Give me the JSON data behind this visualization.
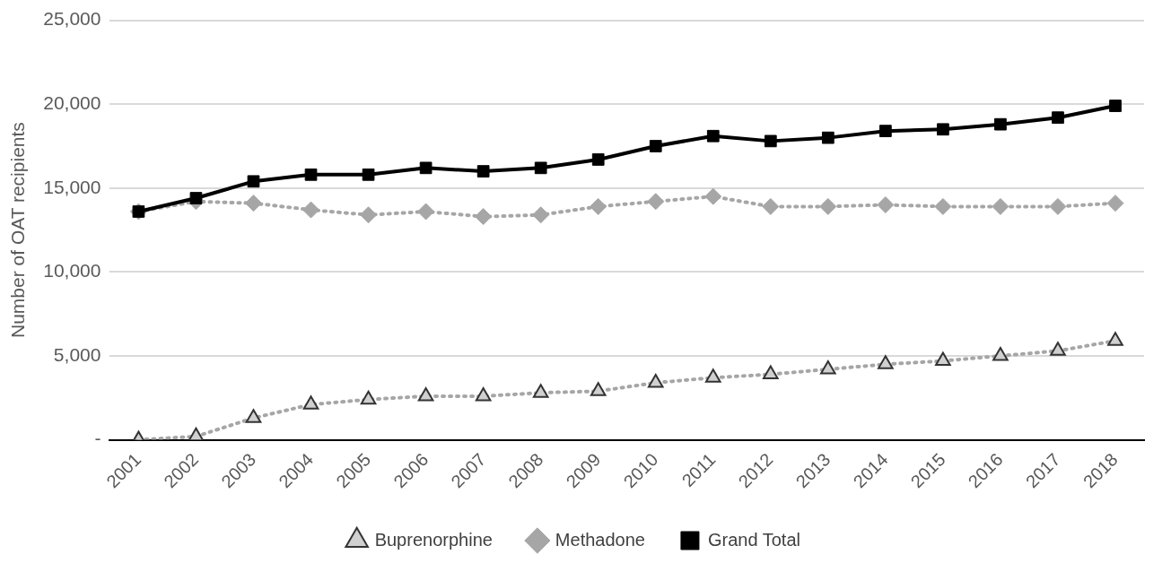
{
  "chart_data": {
    "type": "line",
    "ylabel": "Number of OAT recipients",
    "categories": [
      "2001",
      "2002",
      "2003",
      "2004",
      "2005",
      "2006",
      "2007",
      "2008",
      "2009",
      "2010",
      "2011",
      "2012",
      "2013",
      "2014",
      "2015",
      "2016",
      "2017",
      "2018"
    ],
    "series": [
      {
        "name": "Buprenorphine",
        "color": "#a6a6a6",
        "marker": "triangle",
        "line_style": "dotted",
        "values": [
          0,
          200,
          1300,
          2100,
          2400,
          2600,
          2600,
          2800,
          2900,
          3400,
          3700,
          3900,
          4200,
          4500,
          4700,
          5000,
          5300,
          5900
        ]
      },
      {
        "name": "Methadone",
        "color": "#a6a6a6",
        "marker": "diamond",
        "line_style": "dotted",
        "values": [
          13600,
          14200,
          14100,
          13700,
          13400,
          13600,
          13300,
          13400,
          13900,
          14200,
          14500,
          13900,
          13900,
          14000,
          13900,
          13900,
          13900,
          14100
        ]
      },
      {
        "name": "Grand Total",
        "color": "#000000",
        "marker": "square",
        "line_style": "solid",
        "values": [
          13600,
          14400,
          15400,
          15800,
          15800,
          16200,
          16000,
          16200,
          16700,
          17500,
          18100,
          17800,
          18000,
          18400,
          18500,
          18800,
          19200,
          19900
        ]
      }
    ],
    "ylim": [
      0,
      25000
    ],
    "yticks": [
      {
        "value": 0,
        "label": "-"
      },
      {
        "value": 5000,
        "label": "5,000"
      },
      {
        "value": 10000,
        "label": "10,000"
      },
      {
        "value": 15000,
        "label": "15,000"
      },
      {
        "value": 20000,
        "label": "20,000"
      },
      {
        "value": 25000,
        "label": "25,000"
      }
    ],
    "grid": "y",
    "legend": "bottom"
  }
}
